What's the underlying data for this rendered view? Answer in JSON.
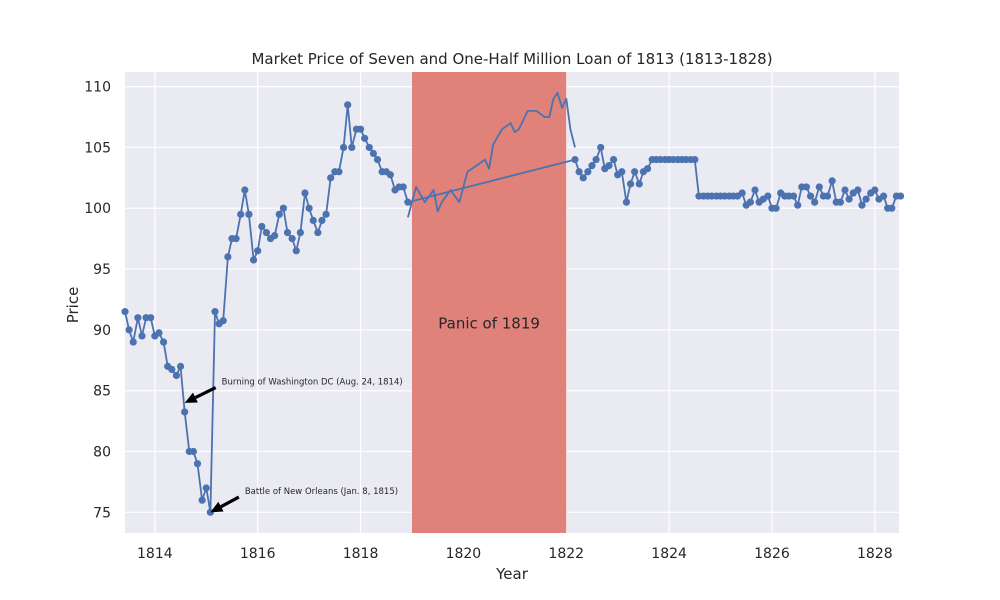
{
  "chart_data": {
    "type": "line",
    "title": "Market Price of Seven and One-Half Million Loan of 1813 (1813-1828)",
    "xlabel": "Year",
    "ylabel": "Price",
    "xlim": [
      1813.42,
      1828.47
    ],
    "ylim": [
      73.3,
      111.2
    ],
    "x_ticks": [
      1814,
      1816,
      1818,
      1820,
      1822,
      1824,
      1826,
      1828
    ],
    "y_ticks": [
      75,
      80,
      85,
      90,
      95,
      100,
      105,
      110
    ],
    "grid": true,
    "line_color": "#4c72b0",
    "region_color": "#e0827a",
    "background_color": "#eaeaf2",
    "series": [
      {
        "marker": "circle",
        "x": [
          1813.42,
          1813.5,
          1813.58,
          1813.67,
          1813.75,
          1813.83,
          1813.92,
          1814.0,
          1814.08,
          1814.17,
          1814.25,
          1814.33,
          1814.42,
          1814.5,
          1814.58,
          1814.67,
          1814.75,
          1814.83,
          1814.92,
          1815.0,
          1815.08,
          1815.17,
          1815.25,
          1815.33,
          1815.42,
          1815.5,
          1815.58,
          1815.67,
          1815.75,
          1815.83,
          1815.92,
          1816.0,
          1816.08,
          1816.17,
          1816.25,
          1816.33,
          1816.42,
          1816.5,
          1816.58,
          1816.67,
          1816.75,
          1816.83,
          1816.92,
          1817.0,
          1817.08,
          1817.17,
          1817.25,
          1817.33,
          1817.42,
          1817.5,
          1817.58,
          1817.67,
          1817.75,
          1817.83,
          1817.92,
          1818.0,
          1818.08,
          1818.17,
          1818.25,
          1818.33,
          1818.42,
          1818.5,
          1818.58,
          1818.67,
          1818.75,
          1818.83,
          1818.92,
          1822.17,
          1822.25,
          1822.33,
          1822.42,
          1822.5,
          1822.58,
          1822.67,
          1822.75,
          1822.83,
          1822.92,
          1823.0,
          1823.08,
          1823.17,
          1823.25,
          1823.33,
          1823.42,
          1823.5,
          1823.58,
          1823.67,
          1823.75,
          1823.83,
          1823.92,
          1824.0,
          1824.08,
          1824.17,
          1824.25,
          1824.33,
          1824.42,
          1824.5,
          1824.58,
          1824.67,
          1824.75,
          1824.83,
          1824.92,
          1825.0,
          1825.08,
          1825.17,
          1825.25,
          1825.33,
          1825.42,
          1825.5,
          1825.58,
          1825.67,
          1825.75,
          1825.83,
          1825.92,
          1826.0,
          1826.08,
          1826.17,
          1826.25,
          1826.33,
          1826.42,
          1826.5,
          1826.58,
          1826.67,
          1826.75,
          1826.83,
          1826.92,
          1827.0,
          1827.08,
          1827.17,
          1827.25,
          1827.33,
          1827.42,
          1827.5,
          1827.58,
          1827.67,
          1827.75,
          1827.83,
          1827.92,
          1828.0,
          1828.08,
          1828.17,
          1828.25,
          1828.33,
          1828.42,
          1828.5
        ],
        "y": [
          91.5,
          90.0,
          89.0,
          91.0,
          89.5,
          91.0,
          91.0,
          89.5,
          89.75,
          89.0,
          87.0,
          86.75,
          86.25,
          87.0,
          83.25,
          80.0,
          80.0,
          79.0,
          76.0,
          77.0,
          75.0,
          91.5,
          90.5,
          90.75,
          96.0,
          97.5,
          97.5,
          99.5,
          101.5,
          99.5,
          95.75,
          96.5,
          98.5,
          98.0,
          97.5,
          97.75,
          99.5,
          100.0,
          98.0,
          97.5,
          96.5,
          98.0,
          101.25,
          100.0,
          99.0,
          98.0,
          99.0,
          99.5,
          102.5,
          103.0,
          103.0,
          105.0,
          108.5,
          105.0,
          106.5,
          106.5,
          105.75,
          105.0,
          104.5,
          104.0,
          103.0,
          103.0,
          102.75,
          101.5,
          101.75,
          101.75,
          100.5,
          104.0,
          103.0,
          102.5,
          103.0,
          103.5,
          104.0,
          105.0,
          103.25,
          103.5,
          104.0,
          102.75,
          103.0,
          100.5,
          102.0,
          103.0,
          102.0,
          103.0,
          103.25,
          104.0,
          104.0,
          104.0,
          104.0,
          104.0,
          104.0,
          104.0,
          104.0,
          104.0,
          104.0,
          104.0,
          101.0,
          101.0,
          101.0,
          101.0,
          101.0,
          101.0,
          101.0,
          101.0,
          101.0,
          101.0,
          101.25,
          100.25,
          100.5,
          101.5,
          100.5,
          100.75,
          101.0,
          100.0,
          100.0,
          101.25,
          101.0,
          101.0,
          101.0,
          100.25,
          101.75,
          101.75,
          101.0,
          100.5,
          101.75,
          101.0,
          101.0,
          102.25,
          100.5,
          100.5,
          101.5,
          100.75,
          101.25,
          101.5,
          100.25,
          100.75,
          101.25,
          101.5,
          100.75,
          101.0,
          100.0,
          100.0,
          101.0,
          101.0
        ]
      },
      {
        "marker": "none",
        "x": [
          1818.92,
          1819.08,
          1819.25,
          1819.42,
          1819.5,
          1819.58,
          1819.75,
          1819.92,
          1820.08,
          1820.25,
          1820.42,
          1820.5,
          1820.58,
          1820.75,
          1820.92,
          1821.0,
          1821.08,
          1821.25,
          1821.42,
          1821.58,
          1821.67,
          1821.75,
          1821.83,
          1821.92,
          1822.0,
          1822.08,
          1822.17
        ],
        "y": [
          99.25,
          101.75,
          100.5,
          101.5,
          99.75,
          100.5,
          101.5,
          100.5,
          103.0,
          103.5,
          104.0,
          103.25,
          105.25,
          106.5,
          107.0,
          106.25,
          106.5,
          108.0,
          108.0,
          107.5,
          107.5,
          109.0,
          109.5,
          108.25,
          109.0,
          106.5,
          105.0
        ]
      }
    ],
    "shaded_regions": [
      {
        "x_start": 1819.0,
        "x_end": 1822.0,
        "label": "Panic of 1819"
      }
    ],
    "annotations": [
      {
        "text": "Burning of Washington DC (Aug. 24, 1814)",
        "x": 1814.58,
        "y": 84.0,
        "text_x": 1815.3,
        "text_y": 85.5
      },
      {
        "text": "Battle of New Orleans (Jan. 8, 1815)",
        "x": 1815.08,
        "y": 75.0,
        "text_x": 1815.75,
        "text_y": 76.5
      }
    ]
  }
}
